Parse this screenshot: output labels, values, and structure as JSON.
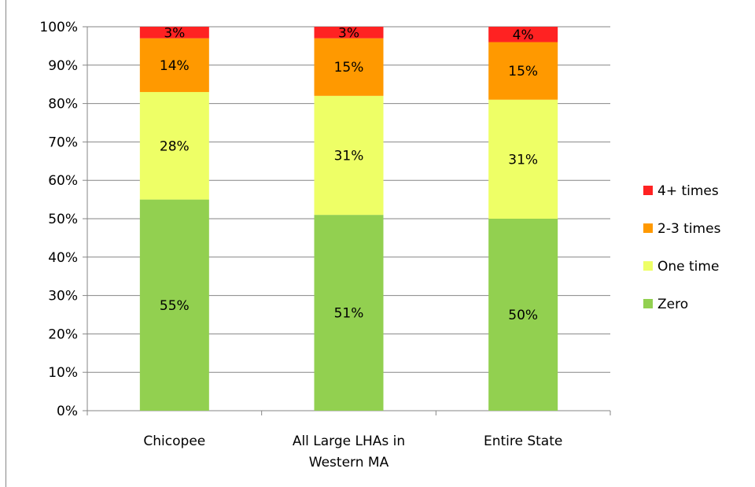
{
  "chart_data": {
    "type": "bar",
    "stacked": true,
    "categories": [
      [
        "Chicopee"
      ],
      [
        "All Large LHAs in",
        "Western MA"
      ],
      [
        "Entire State"
      ]
    ],
    "series": [
      {
        "name": "Zero",
        "color": "#92D050",
        "values": [
          55,
          51,
          50
        ],
        "labels": [
          "55%",
          "51%",
          "50%"
        ]
      },
      {
        "name": "One time",
        "color": "#EEFF66",
        "values": [
          28,
          31,
          31
        ],
        "labels": [
          "28%",
          "31%",
          "31%"
        ]
      },
      {
        "name": "2-3 times",
        "color": "#FF9900",
        "values": [
          14,
          15,
          15
        ],
        "labels": [
          "14%",
          "15%",
          "15%"
        ]
      },
      {
        "name": "4+ times",
        "color": "#FF2222",
        "values": [
          3,
          3,
          4
        ],
        "labels": [
          "3%",
          "3%",
          "4%"
        ]
      }
    ],
    "y_ticks": [
      "0%",
      "10%",
      "20%",
      "30%",
      "40%",
      "50%",
      "60%",
      "70%",
      "80%",
      "90%",
      "100%"
    ],
    "ylim": [
      0,
      100
    ],
    "grid": true,
    "legend_position": "right",
    "legend_order": [
      "4+ times",
      "2-3 times",
      "One time",
      "Zero"
    ]
  }
}
